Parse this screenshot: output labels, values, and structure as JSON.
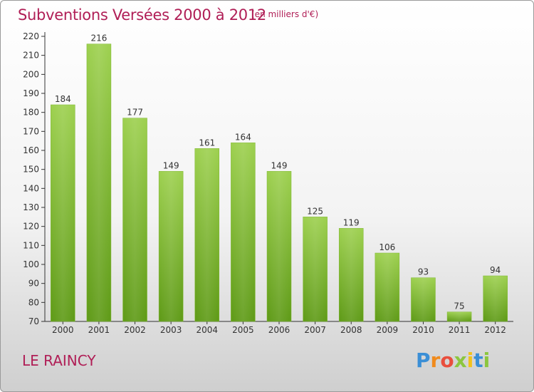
{
  "title": "Subventions Versées 2000 à 2012",
  "subtitle": "(en milliers d'€)",
  "place": "LE RAINCY",
  "logo": {
    "letters": [
      "P",
      "r",
      "o",
      "x",
      "i",
      "t",
      "i"
    ]
  },
  "colors": {
    "title": "#b01e56",
    "bar_top": "#9dd04f",
    "bar_bottom": "#5e9a16",
    "axis": "#333333",
    "grid": "#c8c8c8"
  },
  "chart_data": {
    "type": "bar",
    "title": "Subventions Versées 2000 à 2012",
    "subtitle": "(en milliers d'€)",
    "categories": [
      "2000",
      "2001",
      "2002",
      "2003",
      "2004",
      "2005",
      "2006",
      "2007",
      "2008",
      "2009",
      "2010",
      "2011",
      "2012"
    ],
    "values": [
      184,
      216,
      177,
      149,
      161,
      164,
      149,
      125,
      119,
      106,
      93,
      75,
      94
    ],
    "ylim": [
      70,
      220
    ],
    "yticks": [
      70,
      80,
      90,
      100,
      110,
      120,
      130,
      140,
      150,
      160,
      170,
      180,
      190,
      200,
      210,
      220
    ],
    "grid": false,
    "data_labels": true
  }
}
